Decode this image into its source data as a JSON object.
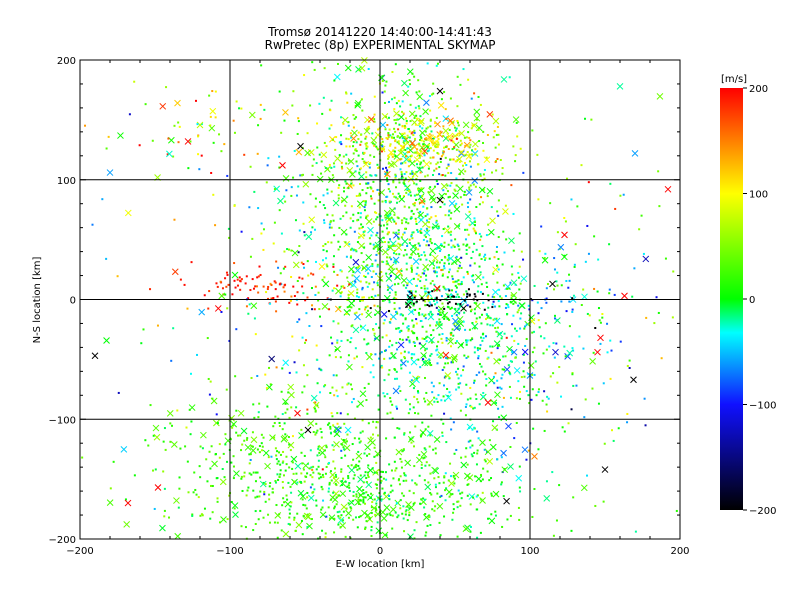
{
  "header": {
    "title": "Tromsø 20141220 14:40:00-14:41:43",
    "subtitle": "RwPretec (8p) EXPERIMENTAL SKYMAP"
  },
  "chart_data": {
    "type": "scatter",
    "title": "Tromsø 20141220 14:40:00-14:41:43",
    "subtitle": "RwPretec (8p) EXPERIMENTAL SKYMAP",
    "xlabel": "E-W location [km]",
    "ylabel": "N-S location [km]",
    "xlim": [
      -200,
      200
    ],
    "ylim": [
      -200,
      200
    ],
    "x_ticks": [
      -200,
      -100,
      0,
      100,
      200
    ],
    "y_ticks": [
      -200,
      -100,
      0,
      100,
      200
    ],
    "x_tick_labels": [
      "−200",
      "−100",
      "0",
      "100",
      "200"
    ],
    "y_tick_labels": [
      "−200",
      "−100",
      "0",
      "100",
      "200"
    ],
    "grid": true,
    "marker_types": [
      "dot",
      "cross"
    ],
    "color_scale": {
      "label": "[m/s]",
      "min": -200,
      "max": 200,
      "ticks": [
        -200,
        -100,
        0,
        100,
        200
      ],
      "tick_labels": [
        "−200",
        "−100",
        "0",
        "100",
        "200"
      ],
      "colormap": [
        "#000000",
        "#1010ff",
        "#00ffff",
        "#00ff00",
        "#ffff00",
        "#ff0000"
      ]
    },
    "clusters": [
      {
        "x": 12,
        "y": 80,
        "sx": 32,
        "sy": 60,
        "v": 20,
        "vs": 45,
        "n": 1100
      },
      {
        "x": 28,
        "y": 130,
        "sx": 30,
        "sy": 12,
        "v": 100,
        "vs": 35,
        "n": 260
      },
      {
        "x": 50,
        "y": -25,
        "sx": 40,
        "sy": 45,
        "v": -10,
        "vs": 35,
        "n": 700
      },
      {
        "x": -45,
        "y": -140,
        "sx": 55,
        "sy": 35,
        "v": 25,
        "vs": 20,
        "n": 650
      },
      {
        "x": 15,
        "y": -170,
        "sx": 40,
        "sy": 25,
        "v": 10,
        "vs": 20,
        "n": 300
      },
      {
        "x": -80,
        "y": 10,
        "sx": 25,
        "sy": 10,
        "v": 190,
        "vs": 20,
        "n": 90
      },
      {
        "x": 45,
        "y": 0,
        "sx": 25,
        "sy": 4,
        "v": -200,
        "vs": 5,
        "n": 45
      },
      {
        "x": 0,
        "y": 0,
        "sx": 90,
        "sy": 100,
        "v": 10,
        "vs": 70,
        "n": 450
      },
      {
        "x": -120,
        "y": 140,
        "sx": 25,
        "sy": 25,
        "v": 100,
        "vs": 60,
        "n": 50
      },
      {
        "x": 120,
        "y": -30,
        "sx": 45,
        "sy": 60,
        "v": -20,
        "vs": 80,
        "n": 110
      }
    ],
    "notable_points": [
      {
        "x": -128,
        "y": 132,
        "v": 200
      },
      {
        "x": -65,
        "y": 112,
        "v": 200
      },
      {
        "x": 192,
        "y": 92,
        "v": 200
      },
      {
        "x": 123,
        "y": 54,
        "v": 200
      },
      {
        "x": 163,
        "y": 3,
        "v": 200
      },
      {
        "x": 147,
        "y": -32,
        "v": 200
      },
      {
        "x": 145,
        "y": -44,
        "v": 200
      },
      {
        "x": 72,
        "y": -86,
        "v": 200
      },
      {
        "x": -55,
        "y": -95,
        "v": 200
      },
      {
        "x": -148,
        "y": -157,
        "v": 200
      },
      {
        "x": -168,
        "y": -170,
        "v": 200
      },
      {
        "x": 103,
        "y": -131,
        "v": 150
      },
      {
        "x": 40,
        "y": 174,
        "v": -200
      },
      {
        "x": -53,
        "y": 128,
        "v": -200
      },
      {
        "x": 40,
        "y": 83,
        "v": -200
      },
      {
        "x": 115,
        "y": 13,
        "v": -200
      },
      {
        "x": -190,
        "y": -47,
        "v": -200
      },
      {
        "x": 150,
        "y": -142,
        "v": -200
      },
      {
        "x": -48,
        "y": -109,
        "v": -200
      },
      {
        "x": 169,
        "y": -67,
        "v": -200
      },
      {
        "x": 117,
        "y": -44,
        "v": -120
      },
      {
        "x": -180,
        "y": 106,
        "v": -60
      },
      {
        "x": 170,
        "y": 122,
        "v": -60
      },
      {
        "x": 160,
        "y": 178,
        "v": -20
      },
      {
        "x": -135,
        "y": 164,
        "v": 120
      }
    ]
  }
}
